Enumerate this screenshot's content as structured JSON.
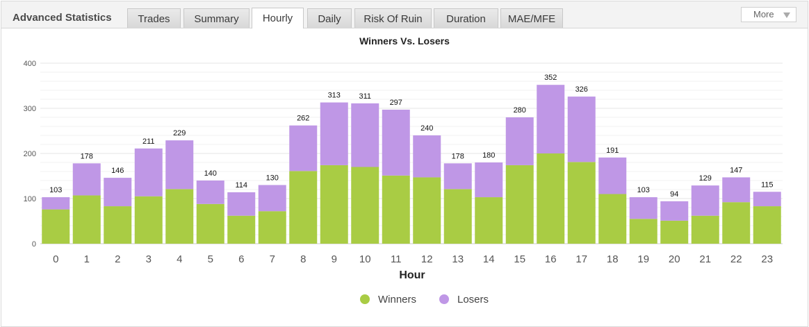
{
  "header": {
    "title": "Advanced Statistics",
    "tabs": [
      {
        "label": "Trades"
      },
      {
        "label": "Summary"
      },
      {
        "label": "Hourly",
        "active": true
      },
      {
        "label": "Daily"
      },
      {
        "label": "Risk Of Ruin"
      },
      {
        "label": "Duration"
      },
      {
        "label": "MAE/MFE"
      }
    ],
    "more_label": "More"
  },
  "colors": {
    "winners": "#a9cc44",
    "losers": "#bf97e6"
  },
  "chart_data": {
    "type": "bar",
    "stacked": true,
    "title": "Winners Vs. Losers",
    "xlabel": "Hour",
    "ylabel": "",
    "categories": [
      "0",
      "1",
      "2",
      "3",
      "4",
      "5",
      "6",
      "7",
      "8",
      "9",
      "10",
      "11",
      "12",
      "13",
      "14",
      "15",
      "16",
      "17",
      "18",
      "19",
      "20",
      "21",
      "22",
      "23"
    ],
    "series": [
      {
        "name": "Winners",
        "values": [
          76,
          107,
          83,
          105,
          121,
          88,
          62,
          72,
          161,
          174,
          170,
          151,
          147,
          121,
          103,
          174,
          200,
          181,
          110,
          55,
          51,
          62,
          92,
          83
        ]
      },
      {
        "name": "Losers",
        "values": [
          27,
          71,
          63,
          106,
          108,
          52,
          52,
          58,
          101,
          139,
          141,
          146,
          93,
          57,
          77,
          106,
          152,
          145,
          81,
          48,
          43,
          67,
          55,
          32
        ]
      }
    ],
    "totals": [
      103,
      178,
      146,
      211,
      229,
      140,
      114,
      130,
      262,
      313,
      311,
      297,
      240,
      178,
      180,
      280,
      352,
      326,
      191,
      103,
      94,
      129,
      147,
      115
    ],
    "yticks": [
      0,
      100,
      200,
      300,
      400
    ],
    "ylim": [
      0,
      400
    ],
    "legend_position": "bottom-center",
    "grid": true
  }
}
